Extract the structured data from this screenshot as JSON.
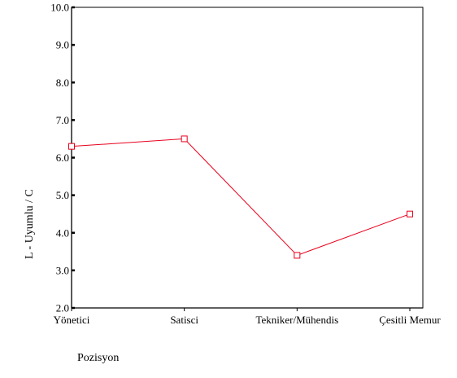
{
  "chart_data": {
    "type": "line",
    "title": "",
    "xlabel": "Pozisyon",
    "ylabel": "L - Uyumlu / C",
    "categories": [
      "Yönetici",
      "Satisci",
      "Tekniker/Mühendis",
      "Çesitli Memur"
    ],
    "series": [
      {
        "values": [
          6.3,
          6.5,
          3.4,
          4.5
        ],
        "color": "#e8001c",
        "marker": "open-square"
      }
    ],
    "ylim": [
      2.0,
      10.0
    ],
    "yticks": [
      "2.0",
      "3.0",
      "4.0",
      "5.0",
      "6.0",
      "7.0",
      "8.0",
      "9.0",
      "10.0"
    ],
    "grid": false,
    "legend": "none",
    "plot_border": true
  }
}
